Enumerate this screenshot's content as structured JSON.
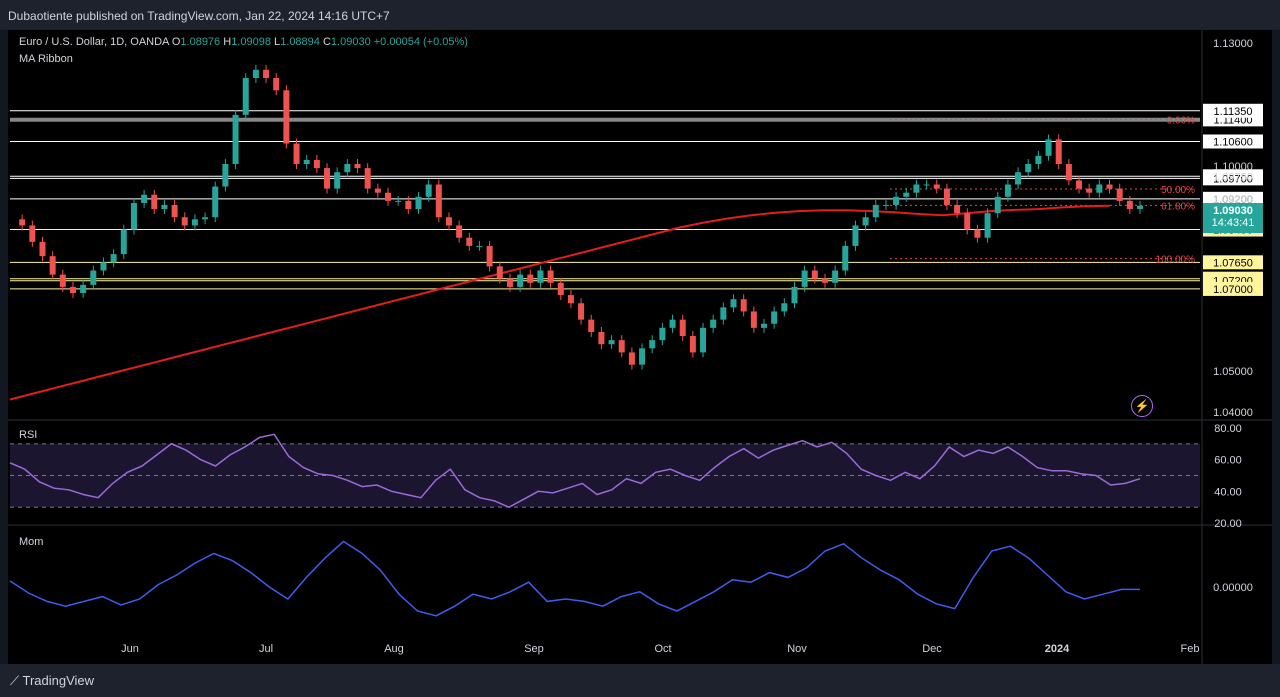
{
  "publisher": "Dubaotiente published on TradingView.com, Jan 22, 2024 14:16 UTC+7",
  "symbol": {
    "name": "Euro / U.S. Dollar, 1D, OANDA",
    "o_label": "O",
    "o": "1.08976",
    "h_label": "H",
    "h": "1.09098",
    "l_label": "L",
    "l": "1.08894",
    "c_label": "C",
    "c": "1.09030",
    "change": "+0.00054 (+0.05%)"
  },
  "indicators": {
    "ma_ribbon": "MA Ribbon",
    "rsi": "RSI",
    "mom": "Mom"
  },
  "price_tag": {
    "price": "1.09030",
    "countdown": "14:43:41"
  },
  "footer": {
    "brand": "TradingView"
  },
  "colors": {
    "up": "#26a69a",
    "down": "#ef5350",
    "ma": "#e01e1e",
    "rsi": "#9a6bd8",
    "mom": "#3f5cf0",
    "level_yellow": "#fff59d",
    "fib": "#e04848"
  },
  "chart_data": {
    "type": "candlestick",
    "title": "Euro / U.S. Dollar, 1D, OANDA",
    "x_labels": [
      "Jun",
      "Jul",
      "Aug",
      "Sep",
      "Oct",
      "Nov",
      "Dec",
      "2024",
      "Feb"
    ],
    "price_axis": {
      "ticks": [
        "1.13000",
        "1.10000",
        "1.09750",
        "1.09200",
        "1.09000",
        "1.05000",
        "1.04000"
      ],
      "ylim": [
        1.038,
        1.132
      ]
    },
    "horizontal_levels": [
      {
        "value": 1.1114,
        "label": "1.11400",
        "color": "#ffffff"
      },
      {
        "value": 1.1135,
        "label": "1.11350",
        "color": "#ffffff"
      },
      {
        "value": 1.106,
        "label": "1.10600",
        "color": "#ffffff"
      },
      {
        "value": 1.0975,
        "label": "1.09750",
        "color": "#ffffff"
      },
      {
        "value": 1.097,
        "label": "1.09700",
        "color": "#ffffff"
      },
      {
        "value": 1.092,
        "label": "1.09200",
        "color": "#ffffff"
      },
      {
        "value": 1.0845,
        "label": "1.08450",
        "color": "#fff59d"
      },
      {
        "value": 1.0765,
        "label": "1.07650",
        "color": "#fff59d"
      },
      {
        "value": 1.0725,
        "label": "1.07250",
        "color": "#fff59d"
      },
      {
        "value": 1.072,
        "label": "1.07200",
        "color": "#fff59d"
      },
      {
        "value": 1.07,
        "label": "1.07000",
        "color": "#fff59d"
      }
    ],
    "fib_levels": [
      {
        "label": "0.00%",
        "value": 1.1114
      },
      {
        "label": "50.00%",
        "value": 1.0944
      },
      {
        "label": "61.80%",
        "value": 1.0904
      },
      {
        "label": "100.00%",
        "value": 1.0774
      }
    ],
    "close_series": [
      1.087,
      1.0855,
      1.0815,
      1.078,
      1.0735,
      1.0705,
      1.069,
      1.071,
      1.0745,
      1.0765,
      1.0785,
      1.0845,
      1.091,
      1.093,
      1.0895,
      1.0905,
      1.0875,
      1.0855,
      1.087,
      1.0875,
      1.095,
      1.1005,
      1.1125,
      1.1215,
      1.1235,
      1.1215,
      1.1185,
      1.1055,
      1.1005,
      1.1015,
      1.0995,
      1.0945,
      1.0985,
      1.1005,
      1.0995,
      1.0945,
      1.0935,
      1.0915,
      1.0915,
      1.0895,
      1.0925,
      1.0955,
      1.0875,
      1.0855,
      1.0825,
      1.0805,
      1.0805,
      1.0755,
      1.0725,
      1.0705,
      1.0735,
      1.0715,
      1.0745,
      1.0715,
      1.0685,
      1.0665,
      1.0625,
      1.0595,
      1.0565,
      1.0575,
      1.0545,
      1.0515,
      1.0555,
      1.0575,
      1.0605,
      1.0625,
      1.0585,
      1.0545,
      1.0605,
      1.0625,
      1.0655,
      1.0675,
      1.0645,
      1.0605,
      1.0615,
      1.0645,
      1.0665,
      1.0705,
      1.0745,
      1.0725,
      1.0715,
      1.0745,
      1.0805,
      1.0855,
      1.0875,
      1.0905,
      1.0905,
      1.0925,
      1.0935,
      1.0955,
      1.0955,
      1.0945,
      1.0905,
      1.0885,
      1.0845,
      1.0825,
      1.0885,
      1.0925,
      1.0955,
      1.0985,
      1.1005,
      1.1025,
      1.1065,
      1.1005,
      1.0965,
      1.0945,
      1.0935,
      1.0955,
      1.0945,
      1.0915,
      1.0895,
      1.0903
    ],
    "ma_series": [
      1.043,
      1.0445,
      1.046,
      1.0475,
      1.049,
      1.0505,
      1.052,
      1.0535,
      1.055,
      1.0565,
      1.058,
      1.0595,
      1.061,
      1.0625,
      1.064,
      1.0655,
      1.067,
      1.0685,
      1.07,
      1.0715,
      1.073,
      1.0745,
      1.076,
      1.0775,
      1.079,
      1.0805,
      1.082,
      1.0835,
      1.085,
      1.0862,
      1.0872,
      1.088,
      1.0886,
      1.089,
      1.0892,
      1.0892,
      1.089,
      1.0887,
      1.0883,
      1.088,
      1.0885,
      1.089,
      1.0893,
      1.0895,
      1.0899,
      1.0902,
      1.0903
    ],
    "rsi": {
      "ticks": [
        "80.00",
        "60.00",
        "40.00",
        "20.00"
      ],
      "ylim": [
        20,
        80
      ],
      "upper": 70,
      "lower": 30,
      "values": [
        58,
        54,
        46,
        42,
        41,
        38,
        36,
        45,
        52,
        56,
        63,
        70,
        66,
        60,
        56,
        63,
        68,
        74,
        76,
        62,
        55,
        51,
        50,
        47,
        43,
        44,
        40,
        38,
        36,
        47,
        54,
        41,
        36,
        34,
        30,
        35,
        40,
        39,
        42,
        45,
        38,
        41,
        48,
        45,
        52,
        54,
        50,
        47,
        55,
        62,
        67,
        61,
        66,
        69,
        72,
        68,
        71,
        64,
        54,
        50,
        47,
        52,
        48,
        56,
        68,
        62,
        66,
        64,
        68,
        62,
        55,
        53,
        53,
        51,
        50,
        44,
        45,
        48
      ]
    },
    "mom": {
      "ticks": [
        "0.00000"
      ],
      "values": [
        0.005,
        -0.005,
        -0.012,
        -0.016,
        -0.012,
        -0.008,
        -0.015,
        -0.01,
        0.002,
        0.01,
        0.02,
        0.028,
        0.022,
        0.012,
        0.0,
        -0.01,
        0.008,
        0.024,
        0.038,
        0.028,
        0.014,
        -0.006,
        -0.02,
        -0.024,
        -0.016,
        -0.006,
        -0.01,
        -0.004,
        0.004,
        -0.012,
        -0.01,
        -0.012,
        -0.016,
        -0.008,
        -0.004,
        -0.014,
        -0.02,
        -0.012,
        -0.004,
        0.006,
        0.004,
        0.012,
        0.008,
        0.016,
        0.03,
        0.036,
        0.024,
        0.014,
        0.006,
        -0.006,
        -0.014,
        -0.018,
        0.008,
        0.03,
        0.034,
        0.024,
        0.01,
        -0.004,
        -0.01,
        -0.006,
        -0.002,
        -0.002
      ]
    }
  }
}
